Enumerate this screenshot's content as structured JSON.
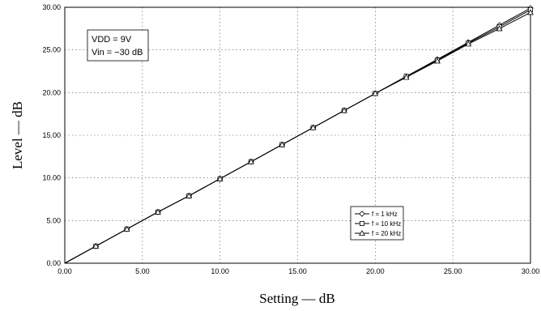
{
  "chart_data": {
    "type": "line",
    "xlabel": "Setting — dB",
    "ylabel": "Level — dB",
    "xlim": [
      0,
      30
    ],
    "ylim": [
      0,
      30
    ],
    "x_ticks": [
      "0.00",
      "5.00",
      "10.00",
      "15.00",
      "20.00",
      "25.00",
      "30.00"
    ],
    "y_ticks": [
      "0.00",
      "5.00",
      "10.00",
      "15.00",
      "20.00",
      "25.00",
      "30.00"
    ],
    "grid": true,
    "legend_position": "bottom-right",
    "annotations": [
      "VDD = 9V",
      "Vin = −30 dB"
    ],
    "x": [
      0,
      2,
      4,
      6,
      8,
      10,
      12,
      14,
      16,
      18,
      20,
      22,
      24,
      26,
      28,
      30
    ],
    "series": [
      {
        "name": "f = 1 kHz",
        "marker": "diamond",
        "values": [
          0,
          2.0,
          4.0,
          6.0,
          7.9,
          9.9,
          11.9,
          13.9,
          15.9,
          17.9,
          19.9,
          21.9,
          23.9,
          25.9,
          27.9,
          29.9
        ]
      },
      {
        "name": "f = 10 kHz",
        "marker": "square",
        "values": [
          0,
          2.0,
          4.0,
          6.0,
          7.9,
          9.9,
          11.9,
          13.9,
          15.9,
          17.9,
          19.9,
          21.9,
          23.8,
          25.8,
          27.7,
          29.7
        ]
      },
      {
        "name": "f = 20 kHz",
        "marker": "triangle",
        "values": [
          0,
          2.0,
          4.0,
          6.0,
          7.9,
          9.9,
          11.9,
          13.9,
          15.9,
          17.9,
          19.9,
          21.8,
          23.7,
          25.7,
          27.5,
          29.4
        ]
      }
    ]
  }
}
